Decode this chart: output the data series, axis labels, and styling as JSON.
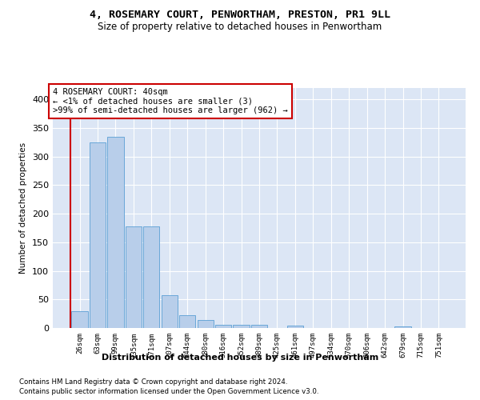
{
  "title": "4, ROSEMARY COURT, PENWORTHAM, PRESTON, PR1 9LL",
  "subtitle": "Size of property relative to detached houses in Penwortham",
  "xlabel": "Distribution of detached houses by size in Penwortham",
  "ylabel": "Number of detached properties",
  "bar_color": "#b8ceea",
  "bar_edge_color": "#5a9fd4",
  "annotation_line_color": "#cc0000",
  "annotation_box_color": "#cc0000",
  "annotation_text": [
    "4 ROSEMARY COURT: 40sqm",
    "← <1% of detached houses are smaller (3)",
    ">99% of semi-detached houses are larger (962) →"
  ],
  "categories": [
    "26sqm",
    "63sqm",
    "99sqm",
    "135sqm",
    "171sqm",
    "207sqm",
    "244sqm",
    "280sqm",
    "316sqm",
    "352sqm",
    "389sqm",
    "425sqm",
    "461sqm",
    "497sqm",
    "534sqm",
    "570sqm",
    "606sqm",
    "642sqm",
    "679sqm",
    "715sqm",
    "751sqm"
  ],
  "bar_heights": [
    30,
    325,
    335,
    178,
    178,
    57,
    22,
    14,
    6,
    5,
    5,
    0,
    4,
    0,
    0,
    0,
    0,
    0,
    3,
    0,
    0
  ],
  "ylim": [
    0,
    420
  ],
  "yticks": [
    0,
    50,
    100,
    150,
    200,
    250,
    300,
    350,
    400
  ],
  "bg_color": "#dce6f5",
  "grid_color": "#ffffff",
  "footer1": "Contains HM Land Registry data © Crown copyright and database right 2024.",
  "footer2": "Contains public sector information licensed under the Open Government Licence v3.0."
}
